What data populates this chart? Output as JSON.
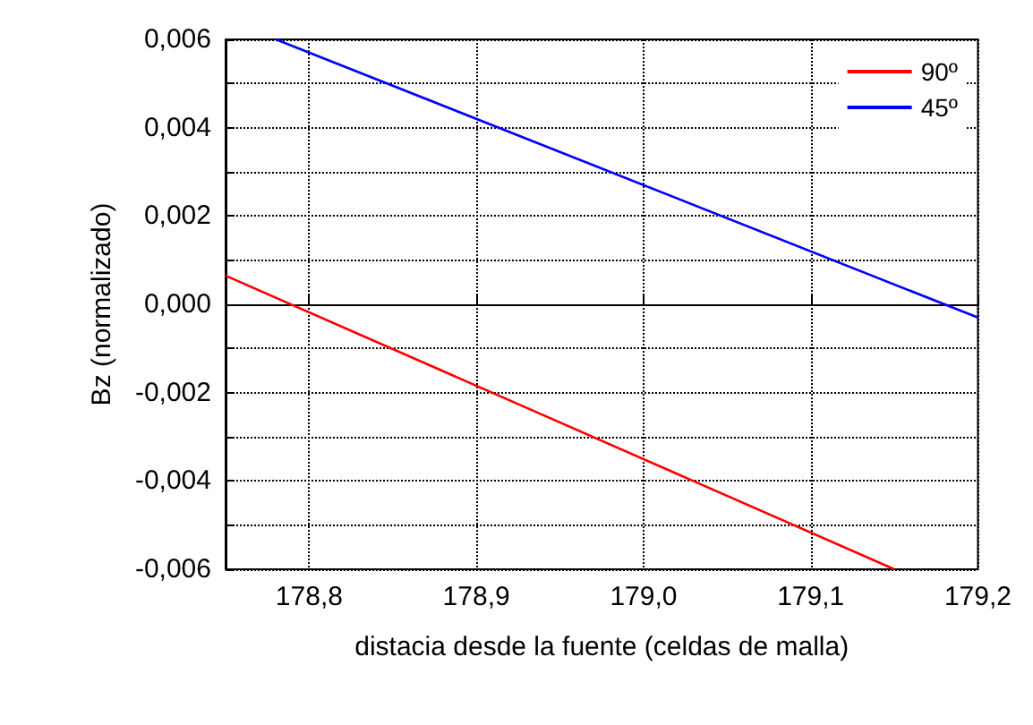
{
  "chart_data": {
    "type": "line",
    "xlabel": "distacia desde la fuente (celdas de malla)",
    "ylabel": "Bz (normalizado)",
    "xlim": [
      178.75,
      179.2
    ],
    "xticks": [
      {
        "value": 178.8,
        "label": "178,8"
      },
      {
        "value": 178.9,
        "label": "178,9"
      },
      {
        "value": 179.0,
        "label": "179,0"
      },
      {
        "value": 179.1,
        "label": "179,1"
      },
      {
        "value": 179.2,
        "label": "179,2"
      }
    ],
    "ylim": [
      -0.006,
      0.006
    ],
    "yticks": [
      {
        "value": -0.006,
        "label": "-0,006"
      },
      {
        "value": -0.005,
        "label": null
      },
      {
        "value": -0.004,
        "label": "-0,004"
      },
      {
        "value": -0.003,
        "label": null
      },
      {
        "value": -0.002,
        "label": "-0,002"
      },
      {
        "value": -0.001,
        "label": null
      },
      {
        "value": 0,
        "label": "0,000"
      },
      {
        "value": 0.001,
        "label": null
      },
      {
        "value": 0.002,
        "label": "0,002"
      },
      {
        "value": 0.003,
        "label": null
      },
      {
        "value": 0.004,
        "label": "0,004"
      },
      {
        "value": 0.005,
        "label": null
      },
      {
        "value": 0.006,
        "label": "0,006"
      }
    ],
    "grid": true,
    "legend": "top right",
    "marker": "none",
    "line_style": "solid",
    "series": [
      {
        "name": "90º",
        "color": "#ff0000",
        "x": [
          178.75,
          179.15
        ],
        "values": [
          0.00065,
          -0.006
        ]
      },
      {
        "name": "45º",
        "color": "#0000ff",
        "x": [
          178.78,
          179.2
        ],
        "values": [
          0.006,
          -0.0003
        ]
      }
    ]
  }
}
